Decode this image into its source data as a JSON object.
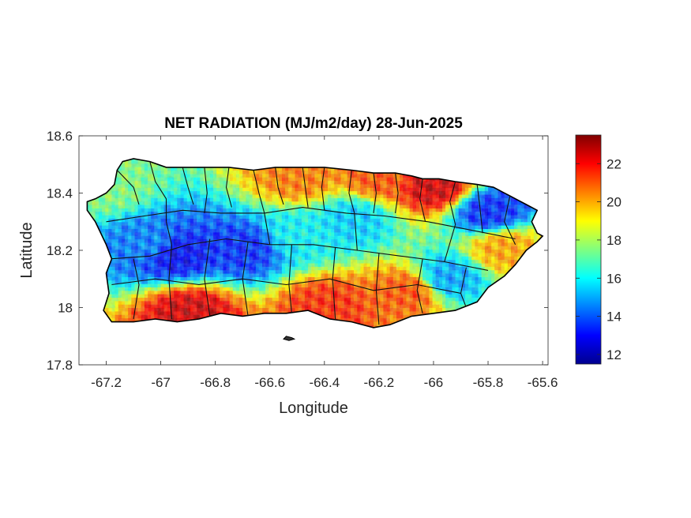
{
  "chart_data": {
    "type": "heatmap",
    "title": "NET RADIATION (MJ/m2/day) 28-Jun-2025",
    "xlabel": "Longitude",
    "ylabel": "Latitude",
    "xlim": [
      -67.3,
      -65.58
    ],
    "ylim": [
      17.8,
      18.6
    ],
    "xticks": [
      -67.2,
      -67,
      -66.8,
      -66.6,
      -66.4,
      -66.2,
      -66,
      -65.8,
      -65.6
    ],
    "xtick_labels": [
      "-67.2",
      "-67",
      "-66.8",
      "-66.6",
      "-66.4",
      "-66.2",
      "-66",
      "-65.8",
      "-65.6"
    ],
    "yticks": [
      17.8,
      18,
      18.2,
      18.4,
      18.6
    ],
    "ytick_labels": [
      "17.8",
      "18",
      "18.2",
      "18.4",
      "18.6"
    ],
    "colorbar": {
      "colormap": "jet",
      "range": [
        11.5,
        23.5
      ],
      "ticks": [
        12,
        14,
        16,
        18,
        20,
        22
      ],
      "tick_labels": [
        "12",
        "14",
        "16",
        "18",
        "20",
        "22"
      ]
    },
    "grid": false,
    "region": "Puerto Rico (municipality boundaries)",
    "approx_values": [
      {
        "lon": -67.2,
        "lat": 18.42,
        "value": 17.5
      },
      {
        "lon": -67.05,
        "lat": 18.22,
        "value": 14.5
      },
      {
        "lon": -66.95,
        "lat": 18.18,
        "value": 13.0
      },
      {
        "lon": -66.7,
        "lat": 18.2,
        "value": 13.5
      },
      {
        "lon": -66.5,
        "lat": 18.25,
        "value": 16.0
      },
      {
        "lon": -66.3,
        "lat": 18.3,
        "value": 15.5
      },
      {
        "lon": -66.5,
        "lat": 18.45,
        "value": 20.5
      },
      {
        "lon": -66.2,
        "lat": 18.45,
        "value": 21.0
      },
      {
        "lon": -66.0,
        "lat": 18.42,
        "value": 22.5
      },
      {
        "lon": -65.8,
        "lat": 18.33,
        "value": 13.5
      },
      {
        "lon": -65.75,
        "lat": 18.2,
        "value": 20.0
      },
      {
        "lon": -66.9,
        "lat": 17.98,
        "value": 22.5
      },
      {
        "lon": -66.4,
        "lat": 18.0,
        "value": 21.5
      },
      {
        "lon": -66.1,
        "lat": 18.05,
        "value": 21.0
      },
      {
        "lon": -65.95,
        "lat": 18.1,
        "value": 15.0
      }
    ]
  }
}
